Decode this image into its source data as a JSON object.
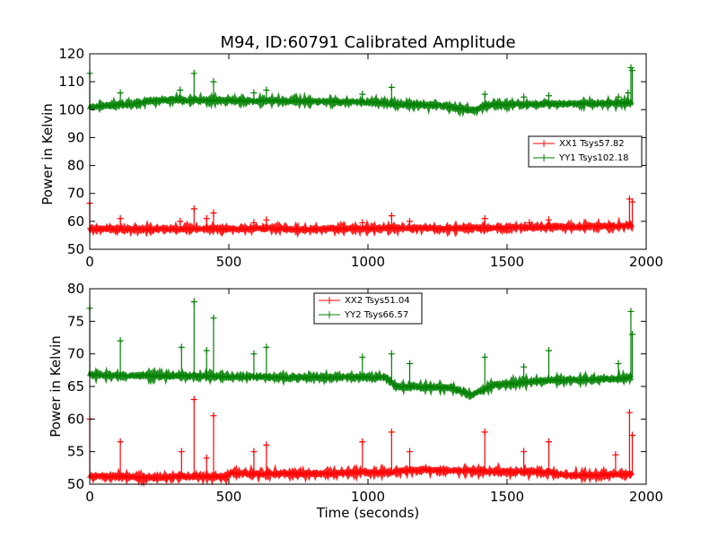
{
  "chart_data": [
    {
      "type": "line",
      "title": "M94, ID:60791 Calibrated Amplitude",
      "xlabel": "",
      "ylabel": "Power in Kelvin",
      "xlim": [
        0,
        2000
      ],
      "ylim": [
        50,
        120
      ],
      "xticks": [
        "0",
        "500",
        "1000",
        "1500",
        "2000"
      ],
      "yticks": [
        "50",
        "60",
        "70",
        "80",
        "90",
        "100",
        "110",
        "120"
      ],
      "grid": false,
      "legend_position": "center-right",
      "series": [
        {
          "name": "XX1 Tsys57.82",
          "color": "#ff0000",
          "marker": "+",
          "x": [
            0,
            100,
            200,
            300,
            400,
            500,
            600,
            700,
            800,
            900,
            1000,
            1100,
            1200,
            1300,
            1360,
            1400,
            1500,
            1600,
            1700,
            1800,
            1900,
            1950
          ],
          "values": [
            57.3,
            57.2,
            57.2,
            57.3,
            57.3,
            57.3,
            57.4,
            57.3,
            57.2,
            57.3,
            57.5,
            57.6,
            57.5,
            57.4,
            57.5,
            57.6,
            57.8,
            57.9,
            58.0,
            58.1,
            58.3,
            58.6
          ],
          "spikes": [
            [
              0,
              66.5
            ],
            [
              110,
              61
            ],
            [
              325,
              60
            ],
            [
              375,
              64.5
            ],
            [
              420,
              61
            ],
            [
              445,
              63
            ],
            [
              590,
              59.5
            ],
            [
              635,
              60.5
            ],
            [
              980,
              59.5
            ],
            [
              1085,
              62
            ],
            [
              1150,
              60
            ],
            [
              1420,
              61
            ],
            [
              1580,
              59.5
            ],
            [
              1650,
              60.5
            ],
            [
              1940,
              68
            ],
            [
              1950,
              67
            ]
          ]
        },
        {
          "name": "YY1 Tsys102.18",
          "color": "#008000",
          "marker": "+",
          "x": [
            0,
            50,
            100,
            150,
            200,
            250,
            300,
            400,
            500,
            600,
            700,
            800,
            900,
            1000,
            1050,
            1100,
            1200,
            1250,
            1300,
            1340,
            1370,
            1400,
            1450,
            1500,
            1600,
            1700,
            1800,
            1900,
            1950
          ],
          "values": [
            100.8,
            101.3,
            101.7,
            102.0,
            102.8,
            103.3,
            103.5,
            103.4,
            103.3,
            103.2,
            103.1,
            102.9,
            102.8,
            102.7,
            102.5,
            101.9,
            101.7,
            101.5,
            101.0,
            100.2,
            99.8,
            100.6,
            101.8,
            101.9,
            102.0,
            102.1,
            102.2,
            102.3,
            102.6
          ],
          "spikes": [
            [
              0,
              113
            ],
            [
              110,
              106
            ],
            [
              325,
              107
            ],
            [
              375,
              113
            ],
            [
              445,
              110
            ],
            [
              590,
              106
            ],
            [
              635,
              107
            ],
            [
              980,
              105.5
            ],
            [
              1085,
              108
            ],
            [
              1420,
              105.5
            ],
            [
              1560,
              104.5
            ],
            [
              1650,
              105
            ],
            [
              1900,
              104.5
            ],
            [
              1935,
              106
            ],
            [
              1945,
              115
            ],
            [
              1950,
              114
            ]
          ]
        }
      ]
    },
    {
      "type": "line",
      "title": "",
      "xlabel": "Time (seconds)",
      "ylabel": "Power in Kelvin",
      "xlim": [
        0,
        2000
      ],
      "ylim": [
        50,
        80
      ],
      "xticks": [
        "0",
        "500",
        "1000",
        "1500",
        "2000"
      ],
      "yticks": [
        "50",
        "55",
        "60",
        "65",
        "70",
        "75",
        "80"
      ],
      "grid": false,
      "legend_position": "top-center",
      "series": [
        {
          "name": "XX2 Tsys51.04",
          "color": "#ff0000",
          "marker": "+",
          "x": [
            0,
            100,
            200,
            300,
            400,
            490,
            510,
            600,
            700,
            800,
            900,
            1000,
            1080,
            1100,
            1200,
            1300,
            1400,
            1500,
            1600,
            1650,
            1700,
            1800,
            1900,
            1950
          ],
          "values": [
            51.2,
            51.2,
            51.0,
            51.1,
            51.2,
            51.1,
            51.7,
            51.6,
            51.6,
            51.6,
            51.7,
            51.8,
            51.8,
            52.0,
            52.2,
            52.1,
            52.0,
            51.9,
            51.9,
            51.8,
            51.4,
            51.4,
            51.5,
            51.5
          ],
          "spikes": [
            [
              0,
              60
            ],
            [
              110,
              56.5
            ],
            [
              330,
              55
            ],
            [
              375,
              63
            ],
            [
              420,
              54
            ],
            [
              445,
              60.5
            ],
            [
              590,
              55
            ],
            [
              635,
              56
            ],
            [
              980,
              56.5
            ],
            [
              1085,
              58
            ],
            [
              1150,
              55
            ],
            [
              1420,
              58
            ],
            [
              1560,
              55
            ],
            [
              1650,
              56.5
            ],
            [
              1890,
              54.5
            ],
            [
              1940,
              61
            ],
            [
              1950,
              57.5
            ]
          ]
        },
        {
          "name": "YY2 Tsys66.57",
          "color": "#008000",
          "marker": "+",
          "x": [
            0,
            100,
            200,
            300,
            400,
            500,
            600,
            700,
            800,
            900,
            1000,
            1070,
            1100,
            1200,
            1300,
            1340,
            1370,
            1400,
            1450,
            1500,
            1600,
            1700,
            1800,
            1900,
            1950
          ],
          "values": [
            66.8,
            66.6,
            66.7,
            66.6,
            66.6,
            66.5,
            66.5,
            66.4,
            66.4,
            66.4,
            66.4,
            66.3,
            65.0,
            64.9,
            64.8,
            64.2,
            63.6,
            64.2,
            65.2,
            65.4,
            65.8,
            66.0,
            66.1,
            66.2,
            66.4
          ],
          "spikes": [
            [
              0,
              77
            ],
            [
              110,
              72
            ],
            [
              330,
              71
            ],
            [
              375,
              78
            ],
            [
              420,
              70.5
            ],
            [
              445,
              75.5
            ],
            [
              590,
              70
            ],
            [
              635,
              71
            ],
            [
              980,
              69.5
            ],
            [
              1085,
              70
            ],
            [
              1150,
              68.5
            ],
            [
              1420,
              69.5
            ],
            [
              1560,
              68
            ],
            [
              1650,
              70.5
            ],
            [
              1900,
              68.5
            ],
            [
              1945,
              76.5
            ],
            [
              1950,
              73
            ]
          ]
        }
      ]
    }
  ]
}
